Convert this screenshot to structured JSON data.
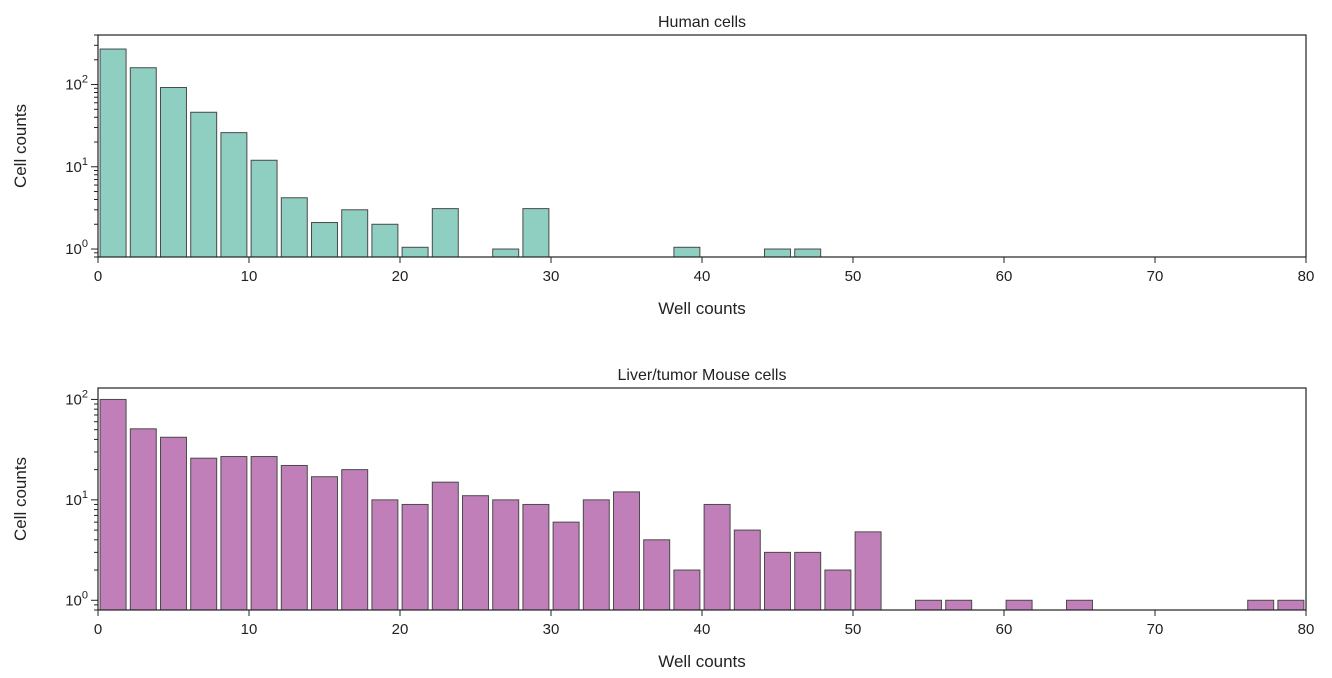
{
  "chart_data": [
    {
      "type": "bar",
      "title": "Human cells",
      "xlabel": "Well counts",
      "ylabel": "Cell counts",
      "xlim": [
        0,
        80
      ],
      "ylog": true,
      "ylim": [
        0.8,
        400
      ],
      "xticks": [
        "0",
        "10",
        "20",
        "30",
        "40",
        "50",
        "60",
        "70",
        "80"
      ],
      "xtick_values": [
        0,
        10,
        20,
        30,
        40,
        50,
        60,
        70,
        80
      ],
      "yticks": [
        {
          "base": "10",
          "exp": "0"
        },
        {
          "base": "10",
          "exp": "1"
        },
        {
          "base": "10",
          "exp": "2"
        }
      ],
      "ytick_values": [
        1,
        10,
        100
      ],
      "bin_width": 2,
      "color": "#8ecfc2",
      "x": [
        2,
        4,
        6,
        8,
        10,
        12,
        14,
        16,
        18,
        20,
        22,
        24,
        28,
        30,
        40,
        46,
        48
      ],
      "values": [
        270,
        160,
        92,
        46,
        26,
        12,
        4.2,
        2.1,
        3,
        2,
        1.05,
        3.1,
        1,
        3.1,
        1.05,
        1,
        1
      ]
    },
    {
      "type": "bar",
      "title": "Liver/tumor Mouse cells",
      "xlabel": "Well counts",
      "ylabel": "Cell counts",
      "xlim": [
        0,
        80
      ],
      "ylog": true,
      "ylim": [
        0.8,
        130
      ],
      "xticks": [
        "0",
        "10",
        "20",
        "30",
        "40",
        "50",
        "60",
        "70",
        "80"
      ],
      "xtick_values": [
        0,
        10,
        20,
        30,
        40,
        50,
        60,
        70,
        80
      ],
      "yticks": [
        {
          "base": "10",
          "exp": "0"
        },
        {
          "base": "10",
          "exp": "1"
        },
        {
          "base": "10",
          "exp": "2"
        }
      ],
      "ytick_values": [
        1,
        10,
        100
      ],
      "bin_width": 2,
      "color": "#c07fb8",
      "x": [
        2,
        4,
        6,
        8,
        10,
        12,
        14,
        16,
        18,
        20,
        22,
        24,
        26,
        28,
        30,
        32,
        34,
        36,
        38,
        40,
        42,
        44,
        46,
        48,
        50,
        52,
        56,
        58,
        62,
        66,
        78,
        80
      ],
      "values": [
        100,
        51,
        42,
        26,
        27,
        27,
        22,
        17,
        20,
        10,
        9,
        15,
        11,
        10,
        9,
        6,
        10,
        12,
        4,
        2,
        9,
        5,
        3,
        3,
        2,
        4.8,
        1,
        1,
        1,
        1,
        1,
        1
      ]
    }
  ]
}
